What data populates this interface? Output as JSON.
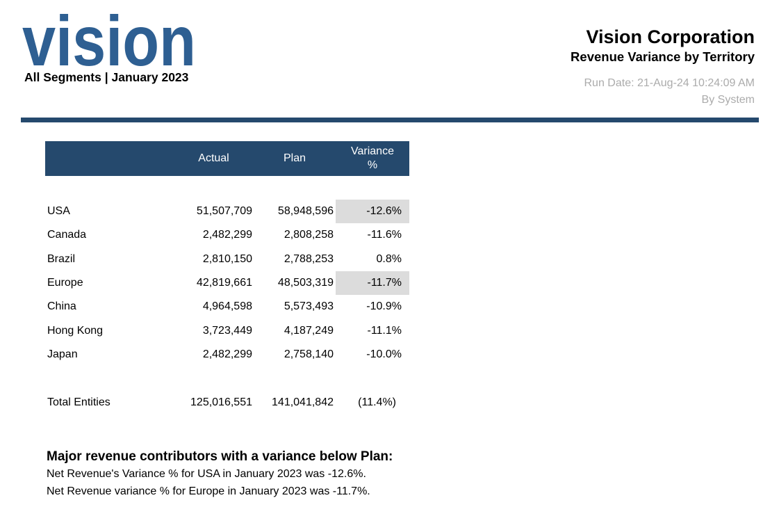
{
  "logo": {
    "text": "vision",
    "subtitle": "All Segments | January 2023"
  },
  "header": {
    "title": "Vision Corporation",
    "subtitle": "Revenue Variance by Territory",
    "run_date": "Run Date: 21-Aug-24 10:24:09 AM",
    "run_by": "By System"
  },
  "colors": {
    "navy": "#25496D",
    "logo_blue": "#2E5F92",
    "muted_text": "#ABABAB",
    "highlight_cell": "#DCDCDC"
  },
  "table": {
    "columns": [
      "",
      "Actual",
      "Plan",
      "Variance %"
    ],
    "rows": [
      {
        "territory": "USA",
        "actual": "51,507,709",
        "plan": "58,948,596",
        "variance": "-12.6%",
        "highlight": true
      },
      {
        "territory": "Canada",
        "actual": "2,482,299",
        "plan": "2,808,258",
        "variance": "-11.6%",
        "highlight": false
      },
      {
        "territory": "Brazil",
        "actual": "2,810,150",
        "plan": "2,788,253",
        "variance": "0.8%",
        "highlight": false
      },
      {
        "territory": "Europe",
        "actual": "42,819,661",
        "plan": "48,503,319",
        "variance": "-11.7%",
        "highlight": true
      },
      {
        "territory": "China",
        "actual": "4,964,598",
        "plan": "5,573,493",
        "variance": "-10.9%",
        "highlight": false
      },
      {
        "territory": "Hong Kong",
        "actual": "3,723,449",
        "plan": "4,187,249",
        "variance": "-11.1%",
        "highlight": false
      },
      {
        "territory": "Japan",
        "actual": "2,482,299",
        "plan": "2,758,140",
        "variance": "-10.0%",
        "highlight": false
      }
    ],
    "total": {
      "territory": "Total Entities",
      "actual": "125,016,551",
      "plan": "141,041,842",
      "variance": "(11.4%)"
    }
  },
  "footer": {
    "heading": "Major revenue contributors with a variance below Plan:",
    "lines": [
      "Net Revenue's Variance % for USA in January 2023 was -12.6%.",
      "Net Revenue variance % for Europe in January 2023 was -11.7%."
    ]
  }
}
